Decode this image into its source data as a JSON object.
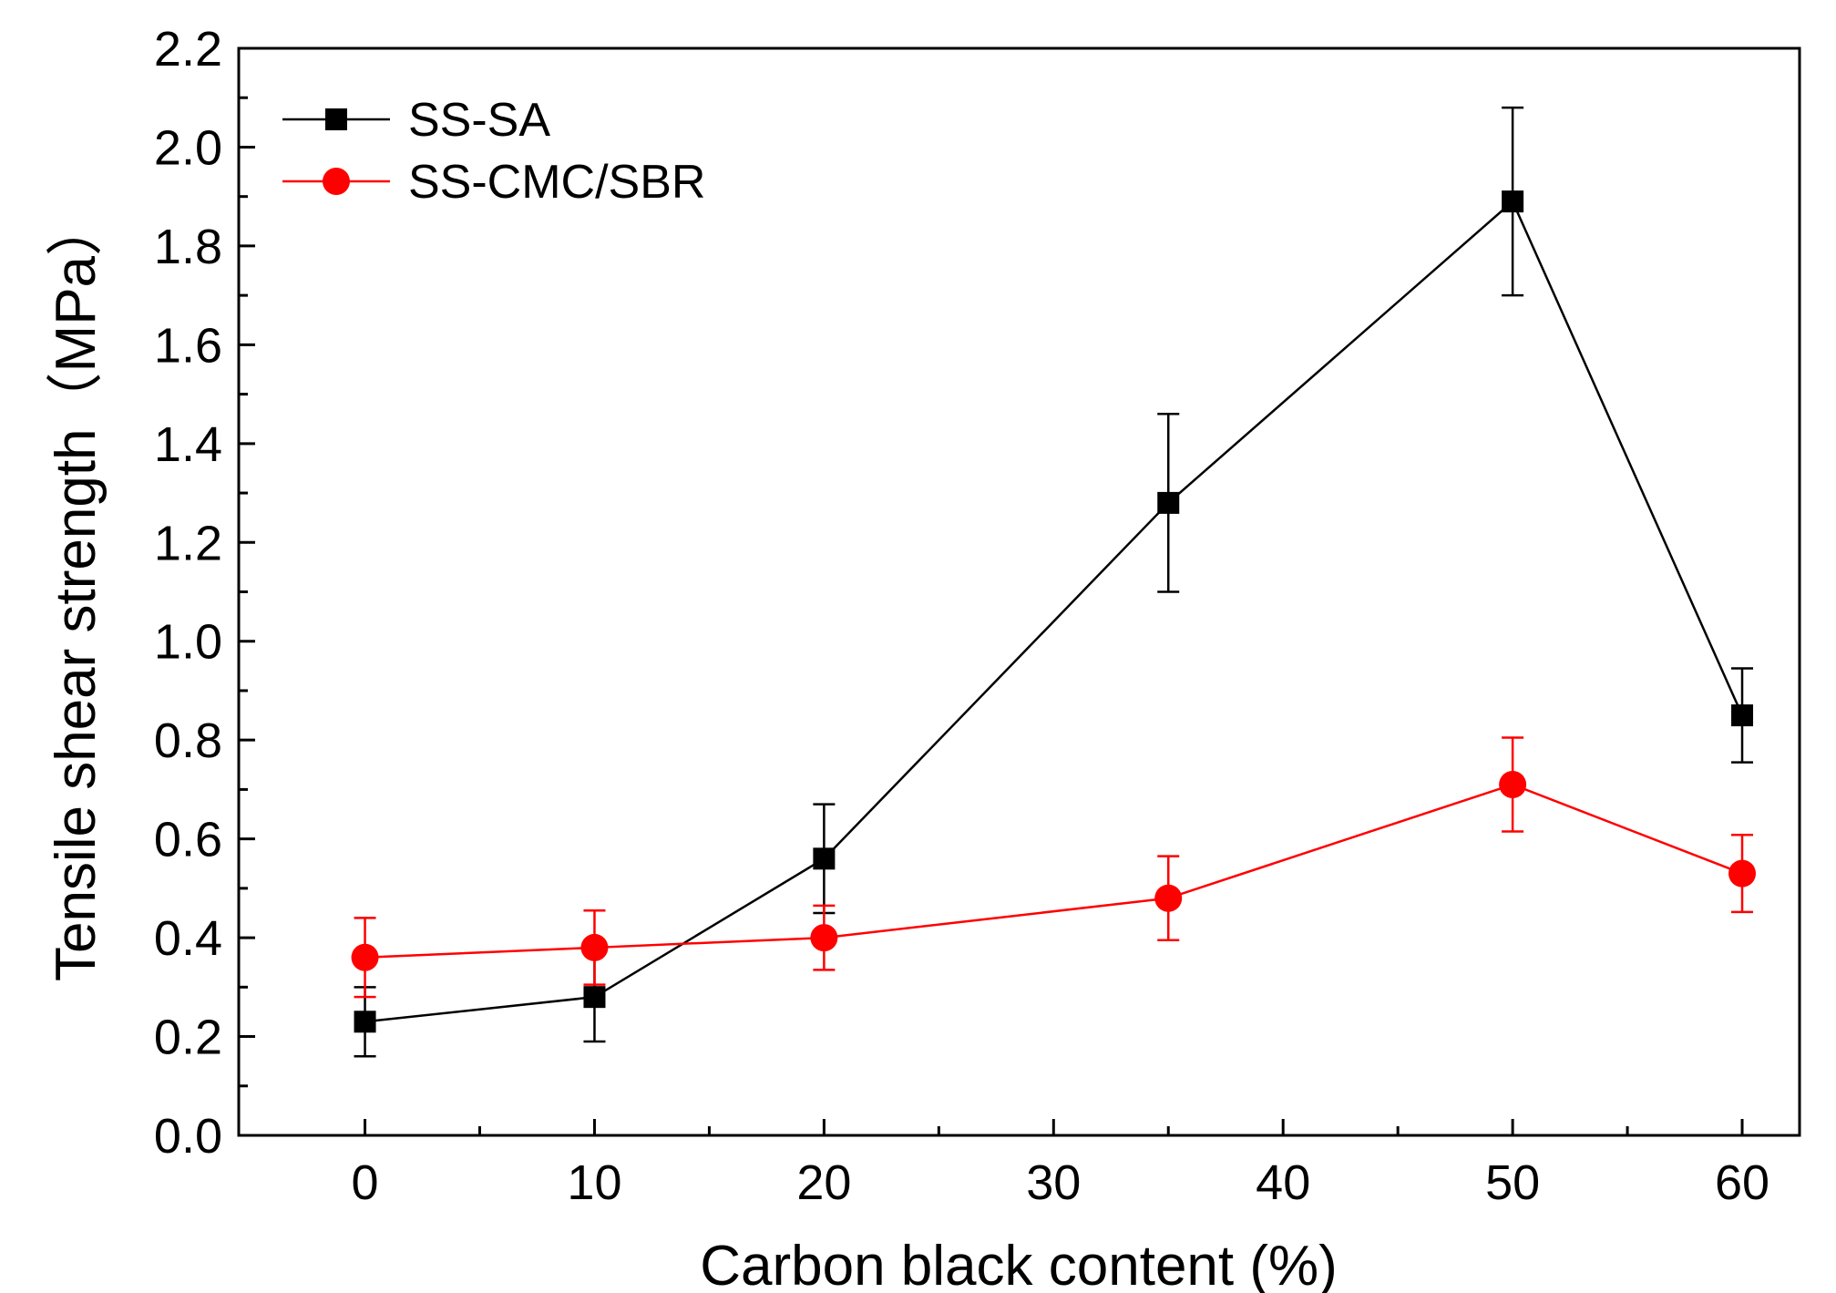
{
  "chart_data": {
    "type": "line",
    "title": "",
    "xlabel": "Carbon black content (%)",
    "ylabel": "Tensile shear strength（MPa）",
    "xlim": [
      -5.5,
      62.5
    ],
    "ylim": [
      0.0,
      2.2
    ],
    "xticks": [
      0,
      10,
      20,
      30,
      40,
      50,
      60
    ],
    "xtick_labels": [
      "0",
      "10",
      "20",
      "30",
      "40",
      "50",
      "60"
    ],
    "yticks": [
      0.0,
      0.2,
      0.4,
      0.6,
      0.8,
      1.0,
      1.2,
      1.4,
      1.6,
      1.8,
      2.0,
      2.2
    ],
    "ytick_labels": [
      "0.0",
      "0.2",
      "0.4",
      "0.6",
      "0.8",
      "1.0",
      "1.2",
      "1.4",
      "1.6",
      "1.8",
      "2.0",
      "2.2"
    ],
    "grid": false,
    "legend_position": "top-left",
    "series": [
      {
        "name": "SS-SA",
        "color": "#000000",
        "marker": "square",
        "x": [
          0,
          10,
          20,
          35,
          50,
          60
        ],
        "y": [
          0.23,
          0.28,
          0.56,
          1.28,
          1.89,
          0.85
        ],
        "error": [
          0.07,
          0.09,
          0.11,
          0.18,
          0.19,
          0.095
        ]
      },
      {
        "name": "SS-CMC/SBR",
        "color": "#ff0000",
        "marker": "circle",
        "x": [
          0,
          10,
          20,
          35,
          50,
          60
        ],
        "y": [
          0.36,
          0.38,
          0.4,
          0.48,
          0.71,
          0.53
        ],
        "error": [
          0.08,
          0.075,
          0.065,
          0.085,
          0.095,
          0.078
        ]
      }
    ]
  }
}
